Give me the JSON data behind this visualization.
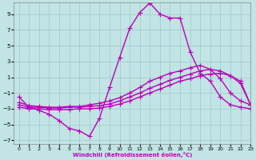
{
  "title": "",
  "xlabel": "Windchill (Refroidissement éolien,°C)",
  "ylabel": "",
  "xlim": [
    -0.5,
    23
  ],
  "ylim": [
    -7.5,
    10.5
  ],
  "yticks": [
    -7,
    -5,
    -3,
    -1,
    1,
    3,
    5,
    7,
    9
  ],
  "xticks": [
    0,
    1,
    2,
    3,
    4,
    5,
    6,
    7,
    8,
    9,
    10,
    11,
    12,
    13,
    14,
    15,
    16,
    17,
    18,
    19,
    20,
    21,
    22,
    23
  ],
  "bg_color": "#c2e4e4",
  "grid_color": "#a0c8c8",
  "line_color": "#bb00bb",
  "line_width": 1.0,
  "marker": "+",
  "marker_size": 4,
  "series": [
    {
      "x": [
        0,
        1,
        2,
        3,
        4,
        5,
        6,
        7,
        8,
        9,
        10,
        11,
        12,
        13,
        14,
        15,
        16,
        17,
        18,
        19,
        20,
        21,
        22,
        23
      ],
      "y": [
        -1.5,
        -2.8,
        -3.2,
        -3.7,
        -4.5,
        -5.5,
        -5.8,
        -6.5,
        -4.2,
        -0.3,
        3.5,
        7.2,
        9.2,
        10.4,
        9.0,
        8.5,
        8.5,
        4.2,
        1.5,
        0.5,
        -1.5,
        -2.5,
        -2.8,
        -3.0
      ]
    },
    {
      "x": [
        0,
        1,
        2,
        3,
        4,
        5,
        6,
        7,
        8,
        9,
        10,
        11,
        12,
        13,
        14,
        15,
        16,
        17,
        18,
        19,
        20,
        21,
        22,
        23
      ],
      "y": [
        -2.8,
        -3.0,
        -3.0,
        -3.1,
        -3.1,
        -3.1,
        -3.0,
        -3.0,
        -2.9,
        -2.7,
        -2.4,
        -2.0,
        -1.5,
        -1.0,
        -0.5,
        0.0,
        0.5,
        0.8,
        1.2,
        1.4,
        1.5,
        1.2,
        0.5,
        -2.5
      ]
    },
    {
      "x": [
        0,
        1,
        2,
        3,
        4,
        5,
        6,
        7,
        8,
        9,
        10,
        11,
        12,
        13,
        14,
        15,
        16,
        17,
        18,
        19,
        20,
        21,
        22,
        23
      ],
      "y": [
        -2.5,
        -2.8,
        -2.8,
        -2.9,
        -2.9,
        -2.8,
        -2.8,
        -2.7,
        -2.6,
        -2.4,
        -2.0,
        -1.5,
        -1.0,
        -0.4,
        0.1,
        0.6,
        1.0,
        1.4,
        1.8,
        2.0,
        1.8,
        1.2,
        0.2,
        -2.5
      ]
    },
    {
      "x": [
        0,
        1,
        2,
        3,
        4,
        5,
        6,
        7,
        8,
        9,
        10,
        11,
        12,
        13,
        14,
        15,
        16,
        17,
        18,
        19,
        20,
        21,
        22,
        23
      ],
      "y": [
        -2.2,
        -2.6,
        -2.7,
        -2.8,
        -2.8,
        -2.7,
        -2.7,
        -2.5,
        -2.3,
        -2.0,
        -1.6,
        -1.0,
        -0.3,
        0.5,
        1.0,
        1.5,
        1.8,
        2.2,
        2.5,
        2.0,
        0.8,
        -1.0,
        -2.0,
        -2.5
      ]
    }
  ]
}
